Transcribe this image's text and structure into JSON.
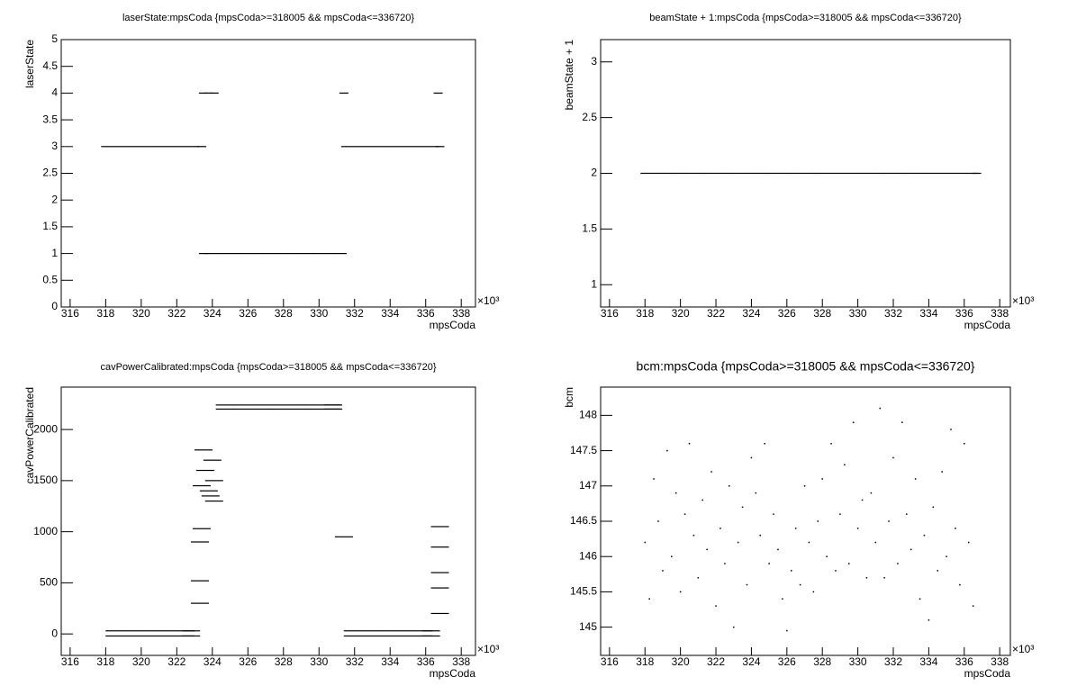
{
  "chart_data": [
    {
      "type": "scatter",
      "title": "laserState:mpsCoda {mpsCoda>=318005 && mpsCoda<=336720}",
      "x_label": "mpsCoda",
      "y_label": "laserState",
      "x_multiplier": "×10³",
      "x": [
        318,
        318.5,
        319,
        319.5,
        320,
        320.5,
        321,
        321.5,
        322,
        322.5,
        323,
        323.4,
        323.5,
        323.8,
        324.1,
        323.5,
        323.8,
        324.3,
        324.8,
        325.3,
        325.8,
        326.3,
        326.8,
        327.3,
        327.8,
        328.3,
        328.8,
        329.3,
        329.8,
        330.3,
        330.8,
        331.3,
        331.5,
        332,
        332.5,
        333,
        333.5,
        334,
        334.5,
        335,
        335.5,
        336,
        336.5,
        336.8,
        331.4,
        336.7
      ],
      "values": [
        3,
        3,
        3,
        3,
        3,
        3,
        3,
        3,
        3,
        3,
        3,
        3,
        4,
        4,
        4,
        1,
        1,
        1,
        1,
        1,
        1,
        1,
        1,
        1,
        1,
        1,
        1,
        1,
        1,
        1,
        1,
        1,
        3,
        3,
        3,
        3,
        3,
        3,
        3,
        3,
        3,
        3,
        3,
        3,
        4,
        4
      ],
      "color": "#000000",
      "xlim": [
        315.5,
        338.8
      ],
      "xticks": [
        316,
        318,
        320,
        322,
        324,
        326,
        328,
        330,
        332,
        334,
        336,
        338
      ],
      "ylim": [
        0,
        5
      ],
      "yticks": [
        0,
        0.5,
        1,
        1.5,
        2,
        2.5,
        3,
        3.5,
        4,
        4.5,
        5
      ]
    },
    {
      "type": "scatter",
      "title": "beamState + 1:mpsCoda {mpsCoda>=318005 && mpsCoda<=336720}",
      "x_label": "mpsCoda",
      "y_label": "beamState + 1",
      "x_multiplier": "×10³",
      "x": [
        318,
        318.5,
        319,
        319.5,
        320,
        320.5,
        321,
        321.5,
        322,
        322.5,
        323,
        323.5,
        324,
        324.5,
        325,
        325.5,
        326,
        326.5,
        327,
        327.5,
        328,
        328.5,
        329,
        329.5,
        330,
        330.5,
        331,
        331.5,
        332,
        332.5,
        333,
        333.5,
        334,
        334.5,
        335,
        335.5,
        336,
        336.5,
        336.7
      ],
      "values": [
        2,
        2,
        2,
        2,
        2,
        2,
        2,
        2,
        2,
        2,
        2,
        2,
        2,
        2,
        2,
        2,
        2,
        2,
        2,
        2,
        2,
        2,
        2,
        2,
        2,
        2,
        2,
        2,
        2,
        2,
        2,
        2,
        2,
        2,
        2,
        2,
        2,
        2,
        2
      ],
      "color": "#000000",
      "xlim": [
        315.5,
        338.6
      ],
      "xticks": [
        316,
        318,
        320,
        322,
        324,
        326,
        328,
        330,
        332,
        334,
        336,
        338
      ],
      "ylim": [
        0.8,
        3.2
      ],
      "yticks": [
        1,
        1.5,
        2,
        2.5,
        3
      ]
    },
    {
      "type": "scatter",
      "title": "cavPowerCalibrated:mpsCoda {mpsCoda>=318005 && mpsCoda<=336720}",
      "x_label": "mpsCoda",
      "y_label": "cavPowerCalibrated",
      "x_multiplier": "×10³",
      "x": [
        318.5,
        319.5,
        320.5,
        321.5,
        322.5,
        322.8,
        318.5,
        319.5,
        320.5,
        321.5,
        322.5,
        322.8,
        331.9,
        332.9,
        333.9,
        334.9,
        335.9,
        336.3,
        331.9,
        332.9,
        333.9,
        334.9,
        335.9,
        336.3,
        324.7,
        325.7,
        326.7,
        327.7,
        328.7,
        329.7,
        330.7,
        330.8,
        324.7,
        325.7,
        326.7,
        327.7,
        328.7,
        329.7,
        330.7,
        330.8,
        323.3,
        323.3,
        323.3,
        323.4,
        323.4,
        323.5,
        323.6,
        323.8,
        323.9,
        324.0,
        324.1,
        324.1,
        331.4,
        336.8,
        336.8,
        336.8,
        336.8,
        336.8
      ],
      "values": [
        30,
        30,
        30,
        30,
        30,
        30,
        -20,
        -20,
        -20,
        -20,
        -20,
        -20,
        30,
        30,
        30,
        30,
        30,
        30,
        -20,
        -20,
        -20,
        -20,
        -20,
        -20,
        2200,
        2200,
        2200,
        2200,
        2200,
        2200,
        2200,
        2200,
        2240,
        2240,
        2240,
        2240,
        2240,
        2240,
        2240,
        2240,
        300,
        520,
        900,
        1030,
        1450,
        1800,
        1600,
        1400,
        1350,
        1700,
        1500,
        1300,
        950,
        1050,
        850,
        600,
        450,
        200
      ],
      "color": "#000000",
      "xlim": [
        315.5,
        338.8
      ],
      "xticks": [
        316,
        318,
        320,
        322,
        324,
        326,
        328,
        330,
        332,
        334,
        336,
        338
      ],
      "ylim": [
        -210,
        2415
      ],
      "yticks": [
        0,
        500,
        1000,
        1500,
        2000
      ]
    },
    {
      "type": "scatter",
      "title": "bcm:mpsCoda {mpsCoda>=318005 && mpsCoda<=336720}",
      "x_label": "mpsCoda",
      "y_label": "bcm",
      "x_multiplier": "×10³",
      "x": [
        318,
        318.25,
        318.5,
        318.75,
        319,
        319.25,
        319.5,
        319.75,
        320,
        320.25,
        320.5,
        320.75,
        321,
        321.25,
        321.5,
        321.75,
        322,
        322.25,
        322.5,
        322.75,
        323,
        323.25,
        323.5,
        323.75,
        324,
        324.25,
        324.5,
        324.75,
        325,
        325.25,
        325.5,
        325.75,
        326,
        326.25,
        326.5,
        326.75,
        327,
        327.25,
        327.5,
        327.75,
        328,
        328.25,
        328.5,
        328.75,
        329,
        329.25,
        329.5,
        329.75,
        330,
        330.25,
        330.5,
        330.75,
        331,
        331.25,
        331.5,
        331.75,
        332,
        332.25,
        332.5,
        332.75,
        333,
        333.25,
        333.5,
        333.75,
        334,
        334.25,
        334.5,
        334.75,
        335,
        335.25,
        335.5,
        335.75,
        336,
        336.25,
        336.5
      ],
      "values": [
        146.2,
        145.4,
        147.1,
        146.5,
        145.8,
        147.5,
        146.0,
        146.9,
        145.5,
        146.6,
        147.6,
        146.3,
        145.7,
        146.8,
        146.1,
        147.2,
        145.3,
        146.4,
        145.9,
        147.0,
        145.0,
        146.2,
        146.7,
        145.6,
        147.4,
        146.9,
        146.3,
        147.6,
        145.9,
        146.6,
        146.1,
        145.4,
        144.95,
        145.8,
        146.4,
        145.6,
        147.0,
        146.2,
        145.5,
        146.5,
        147.1,
        146.0,
        147.6,
        145.8,
        146.6,
        147.3,
        145.9,
        147.9,
        146.4,
        146.8,
        145.7,
        146.9,
        146.2,
        148.1,
        145.7,
        146.5,
        147.4,
        145.9,
        147.9,
        146.6,
        146.1,
        147.1,
        145.4,
        146.3,
        145.1,
        146.7,
        145.8,
        147.2,
        146.0,
        147.8,
        146.4,
        145.6,
        147.6,
        146.2,
        145.3
      ],
      "color": "#000000",
      "xlim": [
        315.5,
        338.6
      ],
      "xticks": [
        316,
        318,
        320,
        322,
        324,
        326,
        328,
        330,
        332,
        334,
        336,
        338
      ],
      "ylim": [
        144.6,
        148.4
      ],
      "yticks": [
        145,
        145.5,
        146,
        146.5,
        147,
        147.5,
        148
      ]
    }
  ]
}
